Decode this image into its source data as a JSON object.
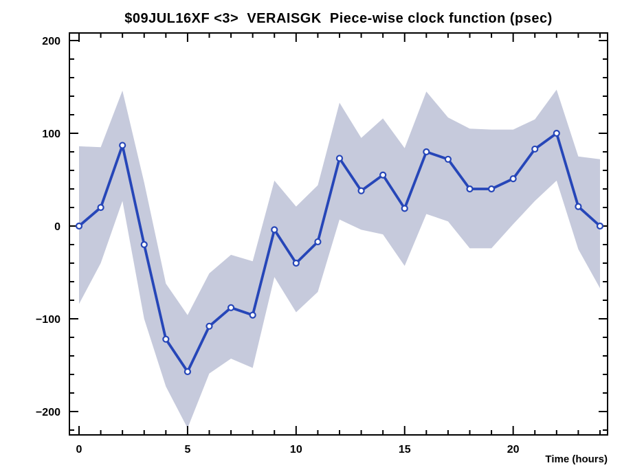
{
  "title": "$09JUL16XF <3>  VERAISGK  Piece-wise clock function (psec)",
  "x_axis": {
    "label": "Time (hours)",
    "major_tick_values": [
      0,
      5,
      10,
      15,
      20
    ],
    "tick_labels": [
      "0",
      "5",
      "10",
      "15",
      "20"
    ],
    "minor_step": 1,
    "minor_start": 0,
    "minor_end": 24,
    "range": [
      -0.45,
      24.35
    ]
  },
  "y_axis": {
    "label": "",
    "major_tick_values": [
      200,
      100,
      0,
      -100,
      -200
    ],
    "tick_labels": [
      "200",
      "100",
      "0",
      "−100",
      "−200"
    ],
    "minor_step": 20,
    "minor_start": -220,
    "minor_end": 200,
    "range": [
      -225,
      208
    ]
  },
  "colors": {
    "background": "#ffffff",
    "line": "#2646b8",
    "band": "#c6cadc",
    "marker_fill": "#ffffff",
    "marker_edge": "#2646b8",
    "axis": "#000000",
    "text": "#000000"
  },
  "chart_data": {
    "type": "line",
    "title": "$09JUL16XF <3>  VERAISGK  Piece-wise clock function (psec)",
    "xlabel": "Time (hours)",
    "ylabel": "",
    "x": [
      0,
      1,
      2,
      3,
      4,
      5,
      6,
      7,
      8,
      9,
      10,
      11,
      12,
      13,
      14,
      15,
      16,
      17,
      18,
      19,
      20,
      21,
      22,
      23,
      24
    ],
    "series": [
      {
        "name": "piece-wise clock function (psec)",
        "values": [
          0,
          20,
          87,
          -20,
          -122,
          -157,
          -108,
          -88,
          -96,
          -4,
          -40,
          -17,
          73,
          38,
          55,
          19,
          80,
          72,
          40,
          40,
          51,
          83,
          100,
          21,
          0
        ]
      },
      {
        "name": "uncertainty band lower (psec)",
        "values": [
          -84,
          -40,
          27,
          -100,
          -173,
          -218,
          -159,
          -143,
          -153,
          -55,
          -93,
          -71,
          7,
          -4,
          -9,
          -43,
          13,
          5,
          -24,
          -24,
          2,
          27,
          49,
          -25,
          -67
        ]
      },
      {
        "name": "uncertainty band upper (psec)",
        "values": [
          86,
          85,
          146,
          47,
          -62,
          -96,
          -51,
          -31,
          -38,
          49,
          21,
          44,
          133,
          95,
          116,
          84,
          145,
          117,
          105,
          104,
          104,
          115,
          147,
          75,
          72
        ]
      }
    ],
    "xlim": [
      -0.45,
      24.35
    ],
    "ylim": [
      -225,
      208
    ],
    "grid": false,
    "legend": "none",
    "marker": "open-circle",
    "band_series": {
      "lower": 1,
      "upper": 2
    }
  }
}
